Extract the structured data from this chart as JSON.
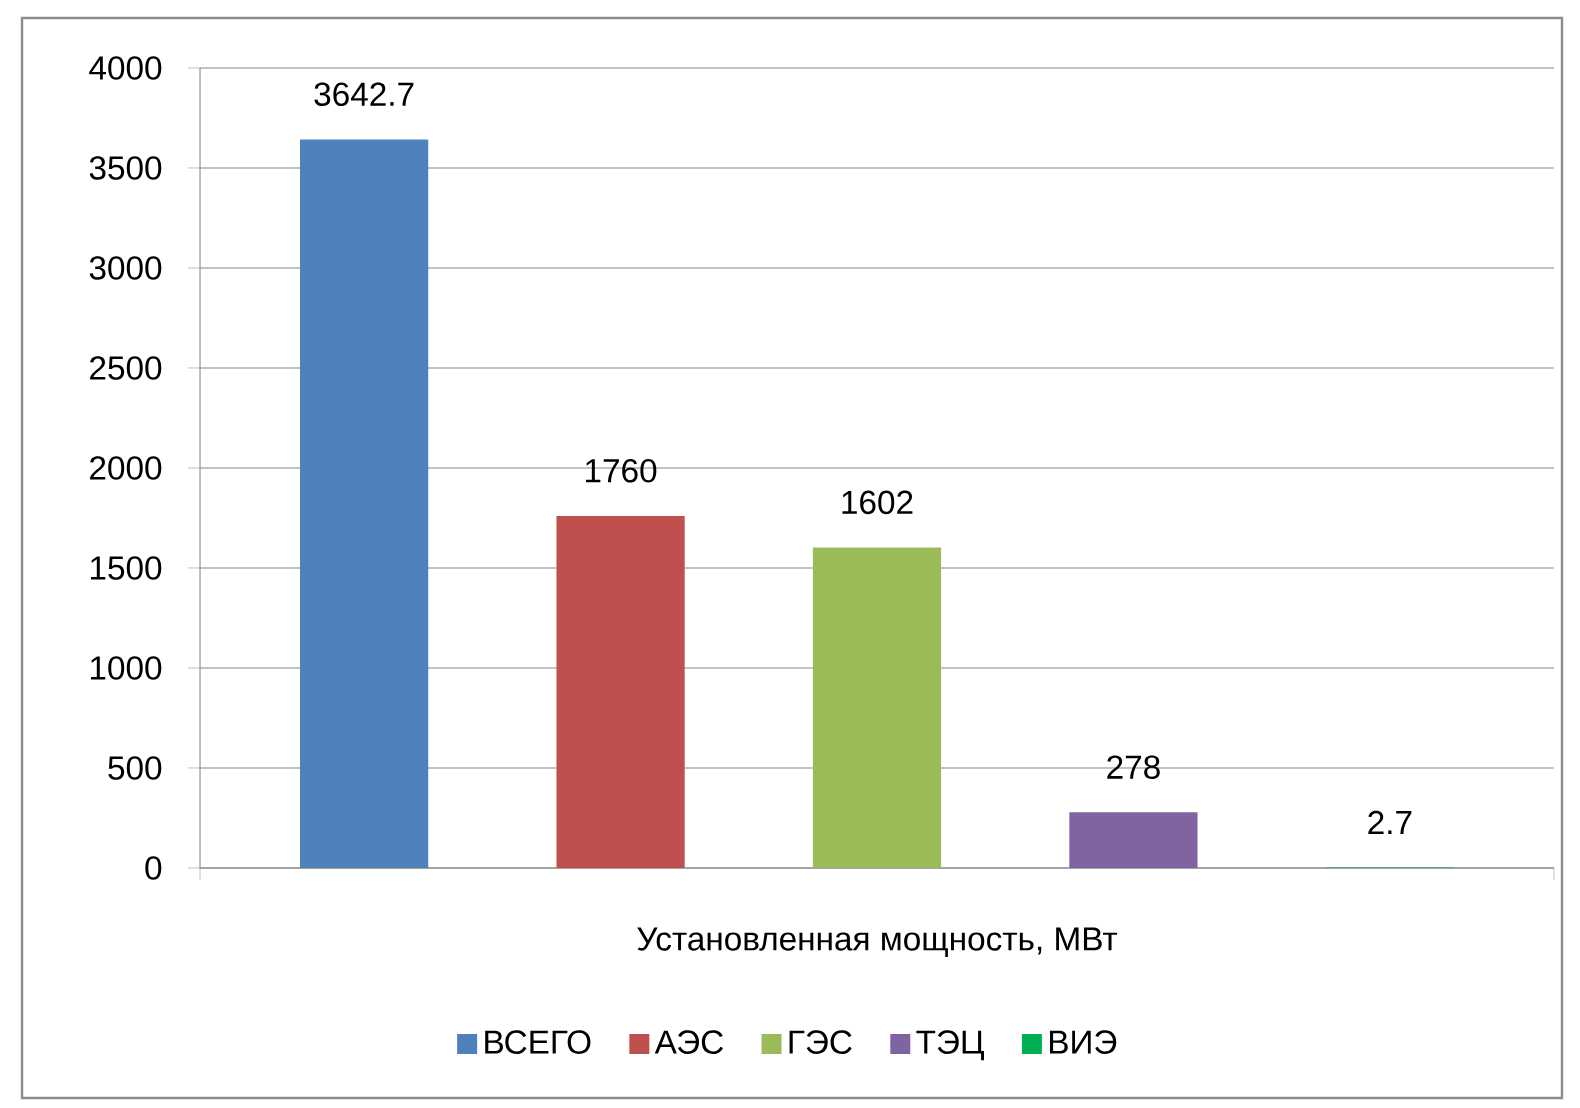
{
  "chart_data": {
    "type": "bar",
    "categories": [
      "Установленная мощность, МВт"
    ],
    "series": [
      {
        "name": "ВСЕГО",
        "color": "#4f81bd",
        "values": [
          3642.7
        ]
      },
      {
        "name": "АЭС",
        "color": "#c0504d",
        "values": [
          1760
        ]
      },
      {
        "name": "ГЭС",
        "color": "#9bbb59",
        "values": [
          1602
        ]
      },
      {
        "name": "ТЭЦ",
        "color": "#8064a2",
        "values": [
          278
        ]
      },
      {
        "name": "ВИЭ",
        "color": "#00b050",
        "values": [
          2.7
        ]
      }
    ],
    "ylim": [
      0,
      4000
    ],
    "yticks": [
      0,
      500,
      1000,
      1500,
      2000,
      2500,
      3000,
      3500,
      4000
    ],
    "grid": "y",
    "legend": "bottom",
    "data_labels": true
  }
}
